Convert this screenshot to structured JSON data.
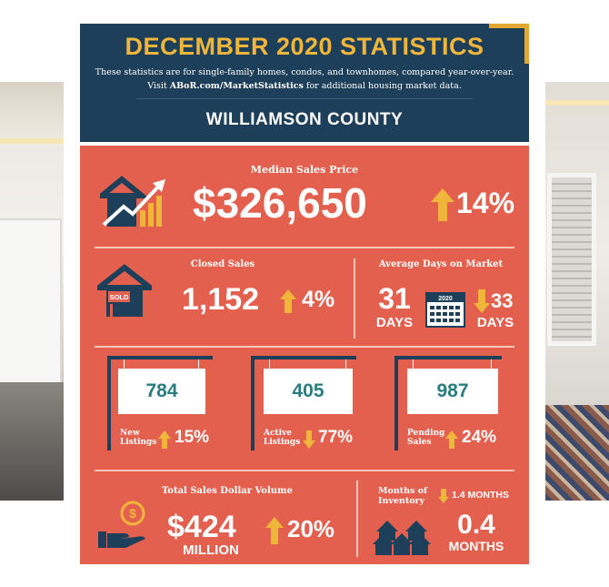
{
  "header": {
    "title": "DECEMBER 2020 STATISTICS",
    "subtitle_line1": "These statistics are for single-family homes, condos, and townhomes, compared year-over-year.",
    "subtitle_line2_prefix": "Visit",
    "subtitle_link": "ABoR.com/MarketStatistics",
    "subtitle_line2_suffix": "for additional housing market data.",
    "county": "WILLIAMSON COUNTY"
  },
  "median_sales_price": {
    "label": "Median Sales Price",
    "value": "$326,650",
    "change": "14%"
  },
  "closed_sales": {
    "label": "Closed Sales",
    "sign_text": "SOLD",
    "value": "1,152",
    "change": "4%"
  },
  "days_on_market": {
    "label": "Average Days on Market",
    "current_value": "31",
    "current_unit": "DAYS",
    "calendar_year": "2020",
    "prior_value": "33",
    "prior_unit": "DAYS"
  },
  "new_listings": {
    "value": "784",
    "label_line1": "New",
    "label_line2": "Listings",
    "change": "15%"
  },
  "active_listings": {
    "value": "405",
    "label_line1": "Active",
    "label_line2": "Listings",
    "change": "77%"
  },
  "pending_sales": {
    "value": "987",
    "label_line1": "Pending",
    "label_line2": "Sales",
    "change": "24%"
  },
  "total_volume": {
    "label": "Total Sales Dollar Volume",
    "value": "$424",
    "unit": "MILLION",
    "change": "20%"
  },
  "months_inventory": {
    "label_line1": "Months of",
    "label_line2": "Inventory",
    "change": "1.4 MONTHS",
    "value": "0.4",
    "unit": "MONTHS"
  },
  "colors": {
    "navy": "#1e3f5a",
    "coral": "#e4604e",
    "gold": "#f0b63c",
    "teal": "#2a7d7f"
  }
}
